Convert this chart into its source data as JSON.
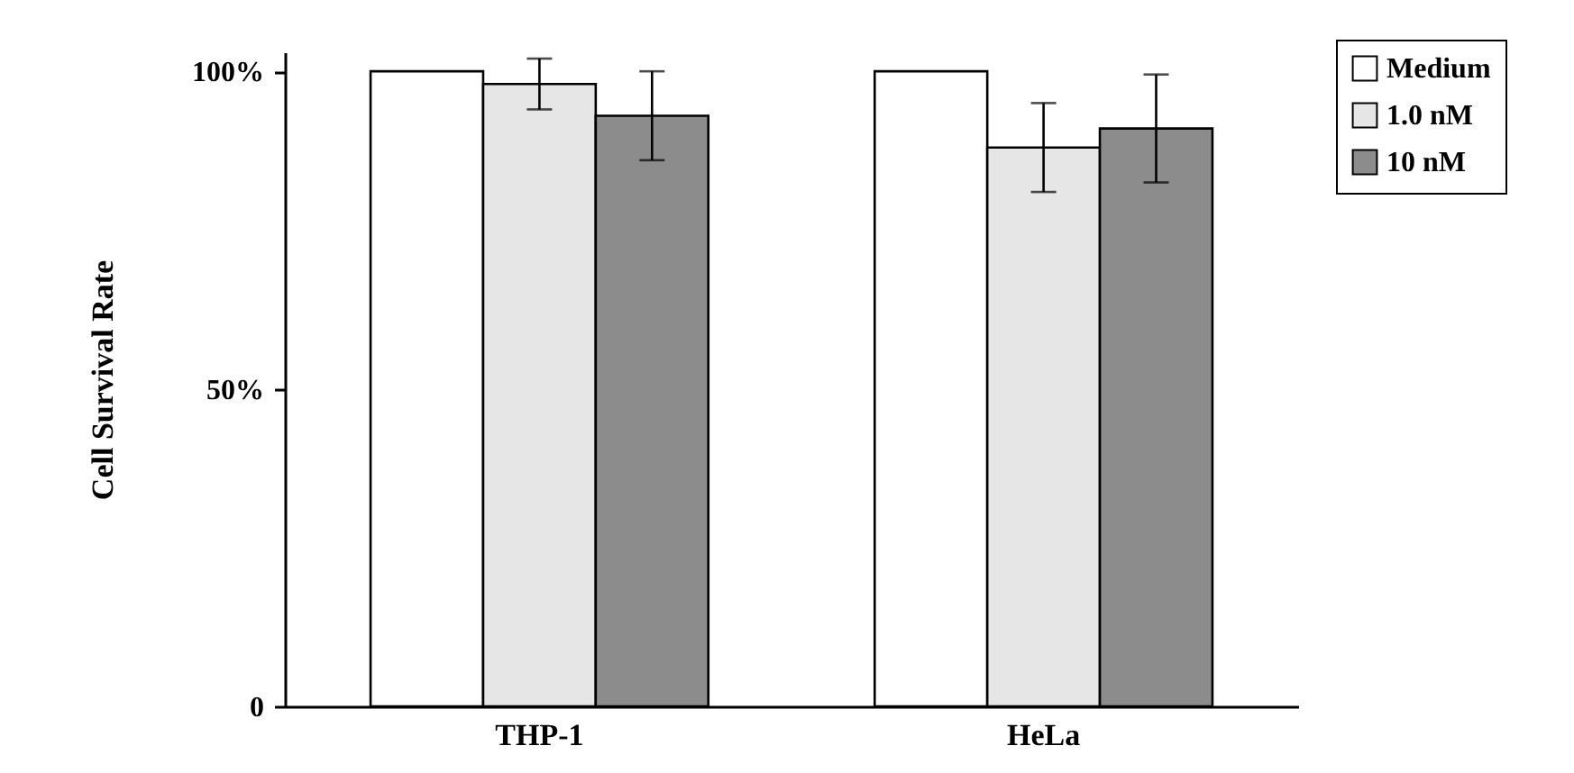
{
  "chart_data": {
    "type": "bar",
    "ylabel": "Cell Survival Rate",
    "categories": [
      "THP-1",
      "HeLa"
    ],
    "series": [
      {
        "name": "Medium",
        "color": "#ffffff",
        "values": [
          100,
          100
        ],
        "errors": [
          null,
          null
        ]
      },
      {
        "name": "1.0 nM",
        "color": "#e6e6e6",
        "values": [
          98,
          88
        ],
        "errors": [
          4,
          7
        ]
      },
      {
        "name": "10 nM",
        "color": "#8c8c8c",
        "values": [
          93,
          91
        ],
        "errors": [
          7,
          8.5
        ]
      }
    ],
    "ylim": [
      0,
      103
    ],
    "yticks": [
      0,
      {
        "value": 50,
        "label": "50%"
      },
      {
        "value": 100,
        "label": "100%"
      }
    ],
    "grid": false,
    "legend": "top right"
  }
}
